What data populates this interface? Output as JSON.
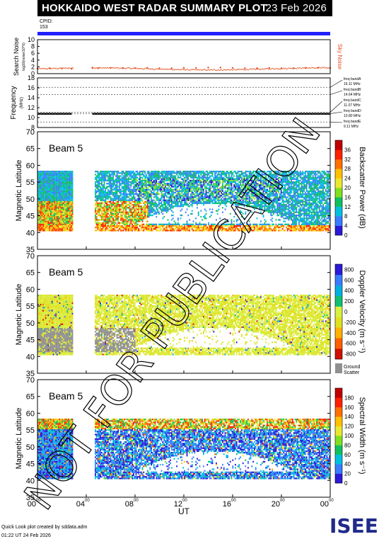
{
  "title": {
    "main": "HOKKAIDO WEST RADAR SUMMARY PLOT",
    "date": "23 Feb 2026"
  },
  "cpid": {
    "label": "CPID:",
    "value": "153"
  },
  "watermark": "NOT FOR PUBLICATION",
  "footer": {
    "line1": "Quick Look plot created by sddata.adm",
    "line2": "01:22 UT 24 Feb 2026"
  },
  "logo": "ISEE",
  "colors": {
    "title_bg": "#000000",
    "cpid_bar": "#2020ff",
    "noise": "#e05020",
    "ground_scatter": "#909090"
  },
  "chart_data": [
    {
      "type": "scatter",
      "name": "noise",
      "ylabel": "Search Noise",
      "ylabel_sub": "log10(noise/10^0)",
      "right_label": "Sky Noise",
      "ylim": [
        0,
        10
      ],
      "yticks": [
        "0",
        "2",
        "4",
        "6",
        "8",
        "10"
      ],
      "x": [
        0,
        1,
        2,
        2.8,
        4.5,
        5,
        6,
        7,
        8,
        9,
        10,
        11,
        12,
        13,
        14,
        15,
        16,
        17,
        18,
        19,
        20,
        21,
        22,
        23,
        24
      ],
      "values": [
        1.5,
        1.6,
        1.5,
        1.4,
        1.8,
        1.6,
        1.7,
        1.6,
        1.6,
        1.7,
        1.6,
        1.6,
        1.7,
        1.7,
        1.8,
        1.8,
        1.7,
        1.6,
        1.6,
        1.7,
        1.6,
        1.6,
        1.7,
        1.7,
        1.7
      ]
    },
    {
      "type": "line",
      "name": "frequency",
      "ylabel": "Frequency",
      "ylabel_sub": "(MHz)",
      "ylim": [
        8,
        18
      ],
      "yticks": [
        "8",
        "10",
        "12",
        "14",
        "16",
        "18"
      ],
      "freq_bands": [
        {
          "label": "freq bandA",
          "value": "16.11 MHz"
        },
        {
          "label": "freq bandB",
          "value": "14.64 MHz"
        },
        {
          "label": "freq bandC",
          "value": "11.07 MHz"
        },
        {
          "label": "freq bandD",
          "value": "10.80 MHz"
        },
        {
          "label": "freq bandE",
          "value": "9.11 MHz"
        }
      ],
      "values": [
        10.8
      ]
    },
    {
      "type": "heatmap",
      "beam": "Beam  5",
      "ylabel": "Magnetic Latitude",
      "ylim": [
        35,
        70
      ],
      "yticks": [
        "35",
        "40",
        "45",
        "50",
        "55",
        "60",
        "65",
        "70"
      ],
      "colorbar_label": "Backscatter Power (dB)",
      "colorbar_ticks": [
        "0",
        "4",
        "8",
        "12",
        "16",
        "20",
        "24",
        "28",
        "32",
        "36"
      ]
    },
    {
      "type": "heatmap",
      "beam": "Beam  5",
      "ylabel": "Magnetic Latitude",
      "ylim": [
        35,
        70
      ],
      "yticks": [
        "35",
        "40",
        "45",
        "50",
        "55",
        "60",
        "65",
        "70"
      ],
      "colorbar_label": "Doppler Velocity (m s⁻¹)",
      "colorbar_ticks": [
        "800",
        "600",
        "400",
        "200",
        "0",
        "-200",
        "-400",
        "-600",
        "-800"
      ],
      "ground_scatter_label": [
        "Ground",
        "Scatter"
      ]
    },
    {
      "type": "heatmap",
      "beam": "Beam  5",
      "ylabel": "Magnetic Latitude",
      "ylim": [
        35,
        70
      ],
      "yticks": [
        "35",
        "40",
        "45",
        "50",
        "55",
        "60",
        "65",
        "70"
      ],
      "colorbar_label": "Spectral Width (m s⁻¹)",
      "colorbar_ticks": [
        "0",
        "20",
        "40",
        "60",
        "80",
        "100",
        "120",
        "140",
        "160",
        "180"
      ]
    }
  ],
  "x_axis": {
    "label": "UT",
    "ticks": [
      {
        "hour": "00",
        "min": "00"
      },
      {
        "hour": "04",
        "min": "00"
      },
      {
        "hour": "08",
        "min": "00"
      },
      {
        "hour": "12",
        "min": "00"
      },
      {
        "hour": "16",
        "min": "00"
      },
      {
        "hour": "20",
        "min": "00"
      },
      {
        "hour": "00",
        "min": "00"
      }
    ]
  }
}
